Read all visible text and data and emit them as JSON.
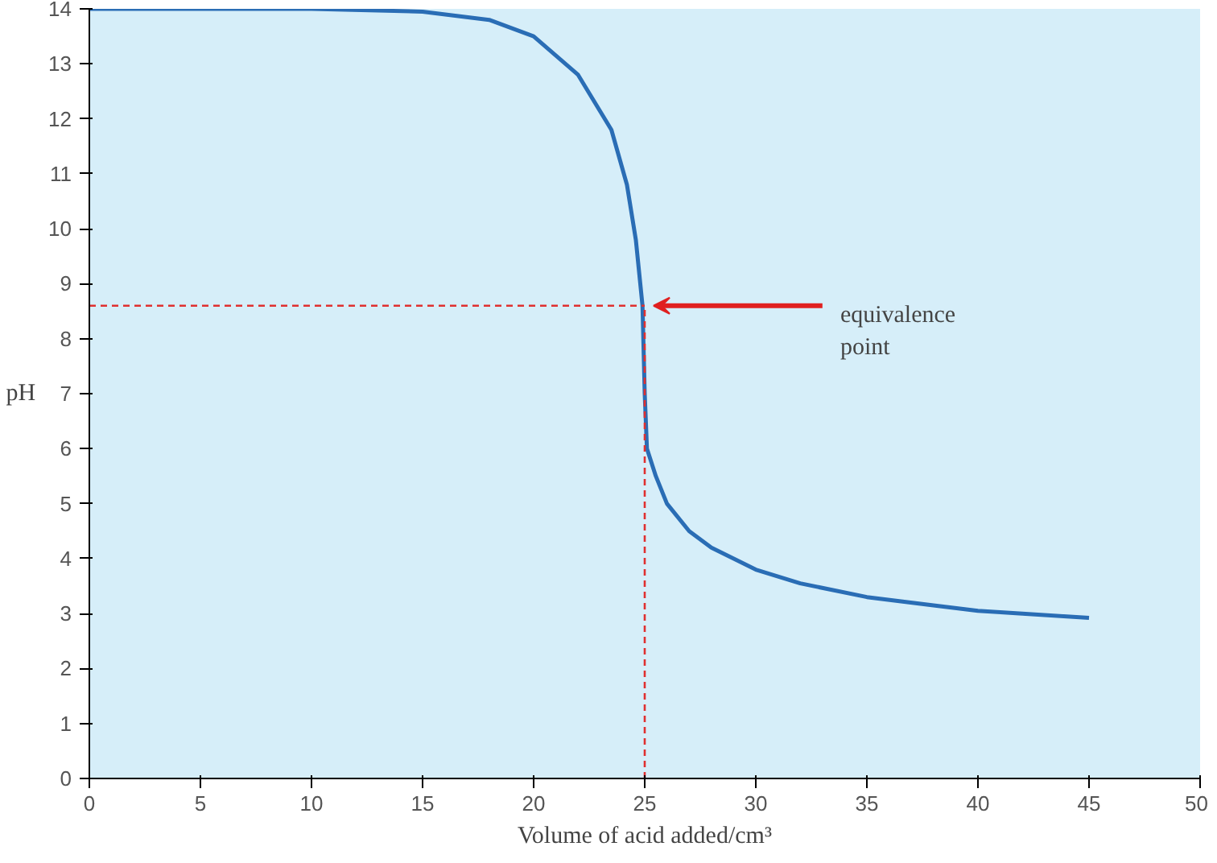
{
  "chart_data": {
    "type": "line",
    "xlabel": "Volume of acid added/cm³",
    "ylabel": "pH",
    "x": [
      0,
      5,
      10,
      15,
      18,
      20,
      22,
      23.5,
      24.2,
      24.6,
      24.9,
      25,
      25.1,
      25.5,
      26,
      27,
      28,
      30,
      32,
      35,
      38,
      40,
      42,
      45
    ],
    "series": [
      {
        "color": "#2a6db5",
        "values": [
          14,
          14,
          14,
          13.95,
          13.8,
          13.5,
          12.8,
          11.8,
          10.8,
          9.8,
          8.6,
          7,
          6,
          5.5,
          5,
          4.5,
          4.2,
          3.8,
          3.55,
          3.3,
          3.15,
          3.05,
          3,
          2.92
        ]
      }
    ],
    "xlim": [
      0,
      50
    ],
    "ylim": [
      0,
      14
    ],
    "xticks": [
      0,
      5,
      10,
      15,
      20,
      25,
      30,
      35,
      40,
      45,
      50
    ],
    "yticks": [
      0,
      1,
      2,
      3,
      4,
      5,
      6,
      7,
      8,
      9,
      10,
      11,
      12,
      13,
      14
    ],
    "grid": false,
    "marker": "none",
    "line_style": "solid",
    "ref_lines": [
      {
        "axis": "y",
        "value": 8.6,
        "color": "#e03030",
        "line_style": "dashed"
      },
      {
        "axis": "x",
        "value": 25,
        "color": "#e03030",
        "line_style": "dashed"
      }
    ],
    "annotations": [
      {
        "text": "equivalence\npoint",
        "x": 25,
        "y": 8.6
      }
    ]
  }
}
